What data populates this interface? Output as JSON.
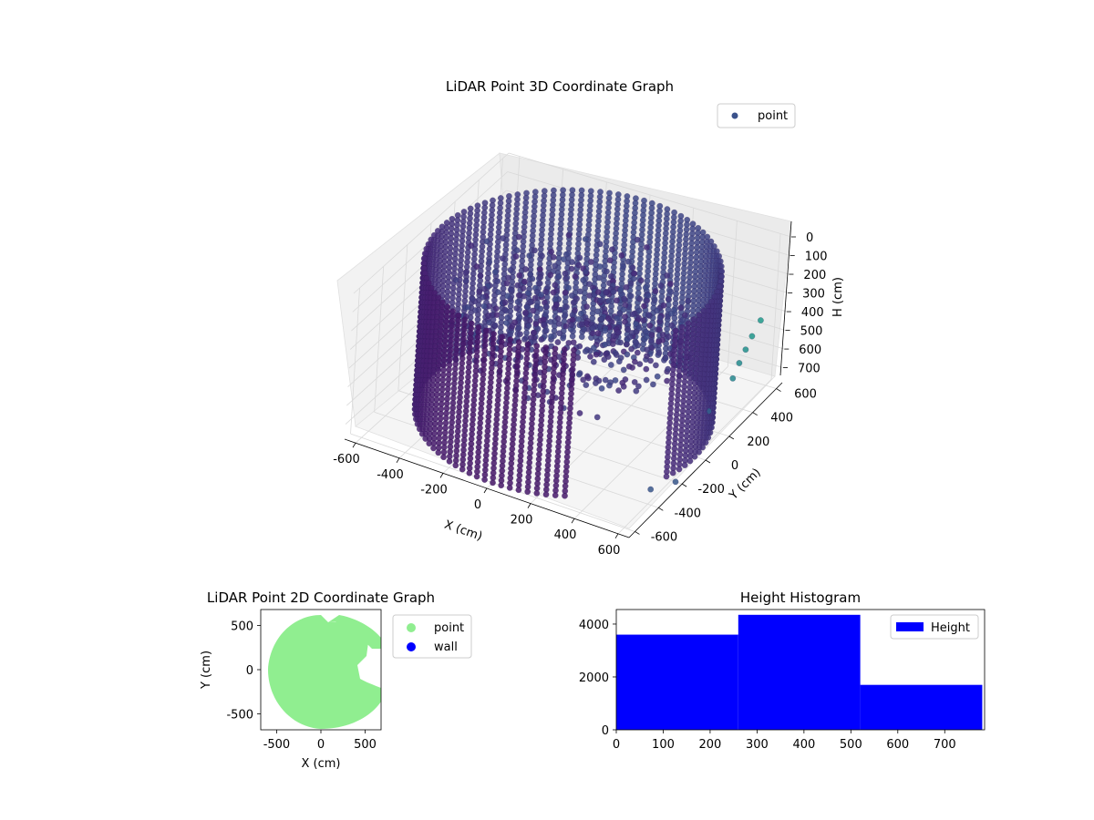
{
  "chart_data": [
    {
      "type": "scatter",
      "projection": "3d",
      "title": "LiDAR Point 3D Coordinate Graph",
      "xlabel": "X (cm)",
      "ylabel": "Y (cm)",
      "zlabel": "H (cm)",
      "xlim": [
        -650,
        650
      ],
      "ylim": [
        -650,
        650
      ],
      "zlim": [
        780,
        0
      ],
      "x_ticks": [
        "-600",
        "-400",
        "-200",
        "0",
        "200",
        "400",
        "600"
      ],
      "y_ticks": [
        "-600",
        "-400",
        "-200",
        "0",
        "200",
        "400",
        "600"
      ],
      "z_ticks": [
        "0",
        "100",
        "200",
        "300",
        "400",
        "500",
        "600",
        "700"
      ],
      "z_inverted": true,
      "grid": true,
      "colormap": "viridis",
      "legend": {
        "placement": "upper-right",
        "entries": [
          "point"
        ],
        "marker_color": "#3b528b"
      },
      "description_of_data": "Dense ring-shaped wall of points around radius ~600 cm spanning heights 0-780 cm, with an interior sloped surface and a few scattered outlier points colored teal",
      "wall_radius": 600,
      "wall_height_range": [
        0,
        780
      ]
    },
    {
      "type": "scatter",
      "title": "LiDAR Point 2D Coordinate Graph",
      "xlabel": "X (cm)",
      "ylabel": "Y (cm)",
      "xlim": [
        -680,
        680
      ],
      "ylim": [
        -680,
        680
      ],
      "x_ticks": [
        "-500",
        "0",
        "500"
      ],
      "y_ticks": [
        "-500",
        "0",
        "500"
      ],
      "series": [
        {
          "name": "point",
          "color": "#90ee90"
        },
        {
          "name": "wall",
          "color": "#0000ff"
        }
      ],
      "legend": {
        "placement": "outside-right",
        "entries": [
          "point",
          "wall"
        ]
      }
    },
    {
      "type": "bar",
      "histogram": true,
      "title": "Height Histogram",
      "xlim": [
        0,
        785
      ],
      "ylim": [
        0,
        4550
      ],
      "x_ticks": [
        "0",
        "100",
        "200",
        "300",
        "400",
        "500",
        "600",
        "700"
      ],
      "y_ticks": [
        "0",
        "2000",
        "4000"
      ],
      "bins": [
        {
          "start": 0,
          "end": 260,
          "count": 3600
        },
        {
          "start": 260,
          "end": 520,
          "count": 4350
        },
        {
          "start": 520,
          "end": 780,
          "count": 1700
        }
      ],
      "color": "#0000ff",
      "series": [
        {
          "name": "Height",
          "color": "#0000ff"
        }
      ],
      "legend": {
        "placement": "upper-right",
        "entries": [
          "Height"
        ]
      }
    }
  ]
}
